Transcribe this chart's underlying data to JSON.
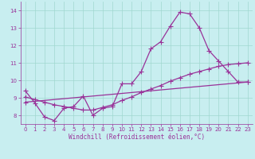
{
  "xlabel": "Windchill (Refroidissement éolien,°C)",
  "background_color": "#c8eef0",
  "grid_color": "#a0d8d0",
  "line_color": "#993399",
  "xlim": [
    -0.5,
    23.5
  ],
  "ylim": [
    7.5,
    14.5
  ],
  "yticks": [
    8,
    9,
    10,
    11,
    12,
    13,
    14
  ],
  "xticks": [
    0,
    1,
    2,
    3,
    4,
    5,
    6,
    7,
    8,
    9,
    10,
    11,
    12,
    13,
    14,
    15,
    16,
    17,
    18,
    19,
    20,
    21,
    22,
    23
  ],
  "series": [
    {
      "x": [
        0,
        1,
        2,
        3,
        4,
        5,
        6,
        7,
        8,
        9,
        10,
        11,
        12,
        13,
        14,
        15,
        16,
        17,
        18,
        19,
        20,
        21,
        22,
        23
      ],
      "y": [
        9.4,
        8.7,
        7.9,
        7.7,
        8.4,
        8.5,
        9.1,
        8.0,
        8.4,
        8.5,
        9.8,
        9.8,
        10.5,
        11.8,
        12.2,
        13.1,
        13.9,
        13.8,
        13.0,
        11.7,
        11.1,
        10.5,
        9.9,
        9.9
      ]
    },
    {
      "x": [
        0,
        1,
        2,
        3,
        4,
        5,
        6,
        7,
        8,
        9,
        10,
        11,
        12,
        13,
        14,
        15,
        16,
        17,
        18,
        19,
        20,
        21,
        22,
        23
      ],
      "y": [
        9.05,
        8.9,
        8.75,
        8.6,
        8.5,
        8.4,
        8.3,
        8.3,
        8.45,
        8.6,
        8.85,
        9.05,
        9.3,
        9.5,
        9.7,
        9.95,
        10.15,
        10.35,
        10.5,
        10.65,
        10.8,
        10.9,
        10.95,
        11.0
      ]
    },
    {
      "x": [
        0,
        23
      ],
      "y": [
        8.75,
        9.9
      ]
    }
  ],
  "marker": "+",
  "markersize": 4,
  "linewidth": 0.9,
  "label_fontsize": 5.5,
  "tick_fontsize": 5
}
